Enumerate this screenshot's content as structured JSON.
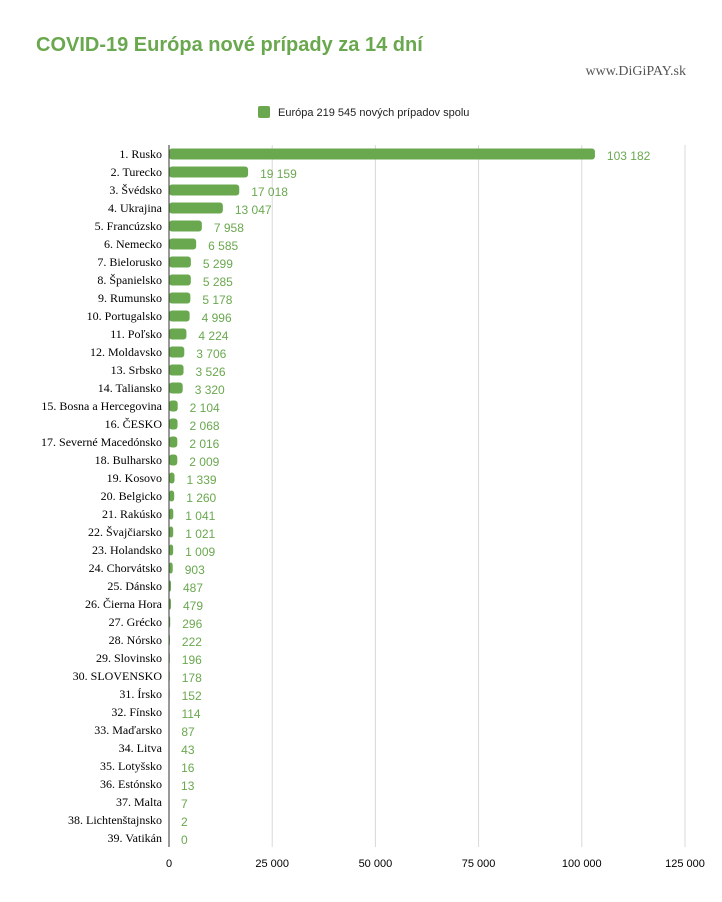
{
  "header": {
    "title": "COVID-19 Európa nové prípady za 14 dní",
    "watermark": "www.DiGiPAY.sk"
  },
  "colors": {
    "accent": "#6aa84f",
    "grid": "#d9d9d9"
  },
  "chart_data": {
    "type": "bar",
    "orientation": "horizontal",
    "title": "COVID-19 Európa nové prípady za 14 dní",
    "legend": {
      "position": "top",
      "label": "Európa 219 545 nových prípadov spolu"
    },
    "grid": true,
    "xlim": [
      0,
      125000
    ],
    "xticks": [
      0,
      25000,
      50000,
      75000,
      100000,
      125000
    ],
    "xtick_labels": [
      "0",
      "25 000",
      "50 000",
      "75 000",
      "100 000",
      "125 000"
    ],
    "categories": [
      "1. Rusko",
      "2. Turecko",
      "3. Švédsko",
      "4. Ukrajina",
      "5. Francúzsko",
      "6. Nemecko",
      "7. Bielorusko",
      "8. Španielsko",
      "9. Rumunsko",
      "10. Portugalsko",
      "11. Poľsko",
      "12. Moldavsko",
      "13. Srbsko",
      "14. Taliansko",
      "15. Bosna a Hercegovina",
      "16. ČESKO",
      "17. Severné Macedónsko",
      "18. Bulharsko",
      "19. Kosovo",
      "20. Belgicko",
      "21. Rakúsko",
      "22. Švajčiarsko",
      "23. Holandsko",
      "24. Chorvátsko",
      "25. Dánsko",
      "26. Čierna Hora",
      "27. Grécko",
      "28. Nórsko",
      "29. Slovinsko",
      "30. SLOVENSKO",
      "31. Írsko",
      "32. Fínsko",
      "33. Maďarsko",
      "34. Litva",
      "35. Lotyšsko",
      "36. Estónsko",
      "37. Malta",
      "38. Lichtenštajnsko",
      "39. Vatikán"
    ],
    "values": [
      103182,
      19159,
      17018,
      13047,
      7958,
      6585,
      5299,
      5285,
      5178,
      4996,
      4224,
      3706,
      3526,
      3320,
      2104,
      2068,
      2016,
      2009,
      1339,
      1260,
      1041,
      1021,
      1009,
      903,
      487,
      479,
      296,
      222,
      196,
      178,
      152,
      114,
      87,
      43,
      16,
      13,
      7,
      2,
      0
    ],
    "value_labels": [
      "103 182",
      "19 159",
      "17 018",
      "13 047",
      "7 958",
      "6 585",
      "5 299",
      "5 285",
      "5 178",
      "4 996",
      "4 224",
      "3 706",
      "3 526",
      "3 320",
      "2 104",
      "2 068",
      "2 016",
      "2 009",
      "1 339",
      "1 260",
      "1 041",
      "1 021",
      "1 009",
      "903",
      "487",
      "479",
      "296",
      "222",
      "196",
      "178",
      "152",
      "114",
      "87",
      "43",
      "16",
      "13",
      "7",
      "2",
      "0"
    ]
  }
}
